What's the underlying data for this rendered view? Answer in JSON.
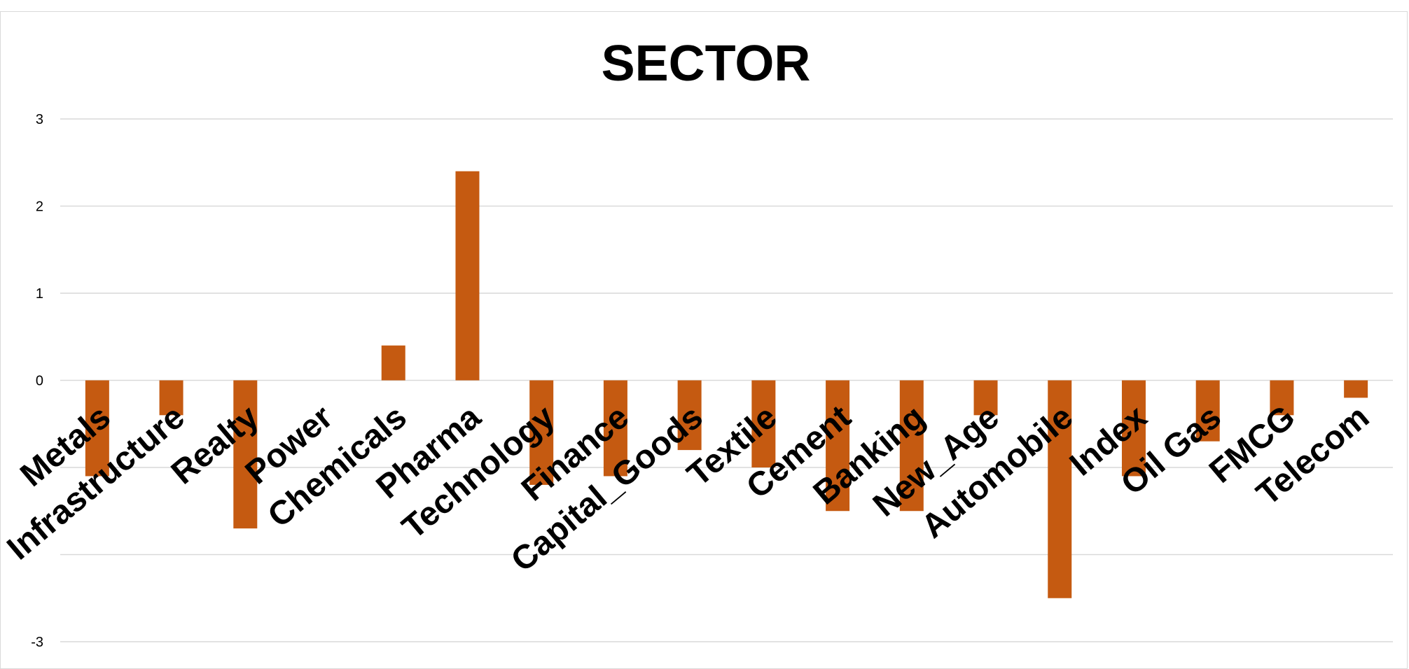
{
  "chart_data": {
    "type": "bar",
    "title": "SECTOR",
    "xlabel": "",
    "ylabel": "",
    "ylim": [
      -3,
      3
    ],
    "yticks": [
      "3",
      "2",
      "1",
      "0",
      "",
      "",
      "-3"
    ],
    "grid": true,
    "legend": "none",
    "bar_color": "#C55A11",
    "categories": [
      "Metals",
      "Infrastructure",
      "Realty",
      "Power",
      "Chemicals",
      "Pharma",
      "Technology",
      "Finance",
      "Capital_Goods",
      "Textile",
      "Cement",
      "Banking",
      "New_Age",
      "Automobile",
      "Index",
      "Oil Gas",
      "FMCG",
      "Telecom"
    ],
    "values": [
      -1.1,
      -0.4,
      -1.7,
      0,
      0.4,
      2.4,
      -1.2,
      -1.1,
      -0.8,
      -1.0,
      -1.5,
      -1.5,
      -0.4,
      -2.5,
      -1.1,
      -0.7,
      -0.4,
      -0.2
    ]
  }
}
